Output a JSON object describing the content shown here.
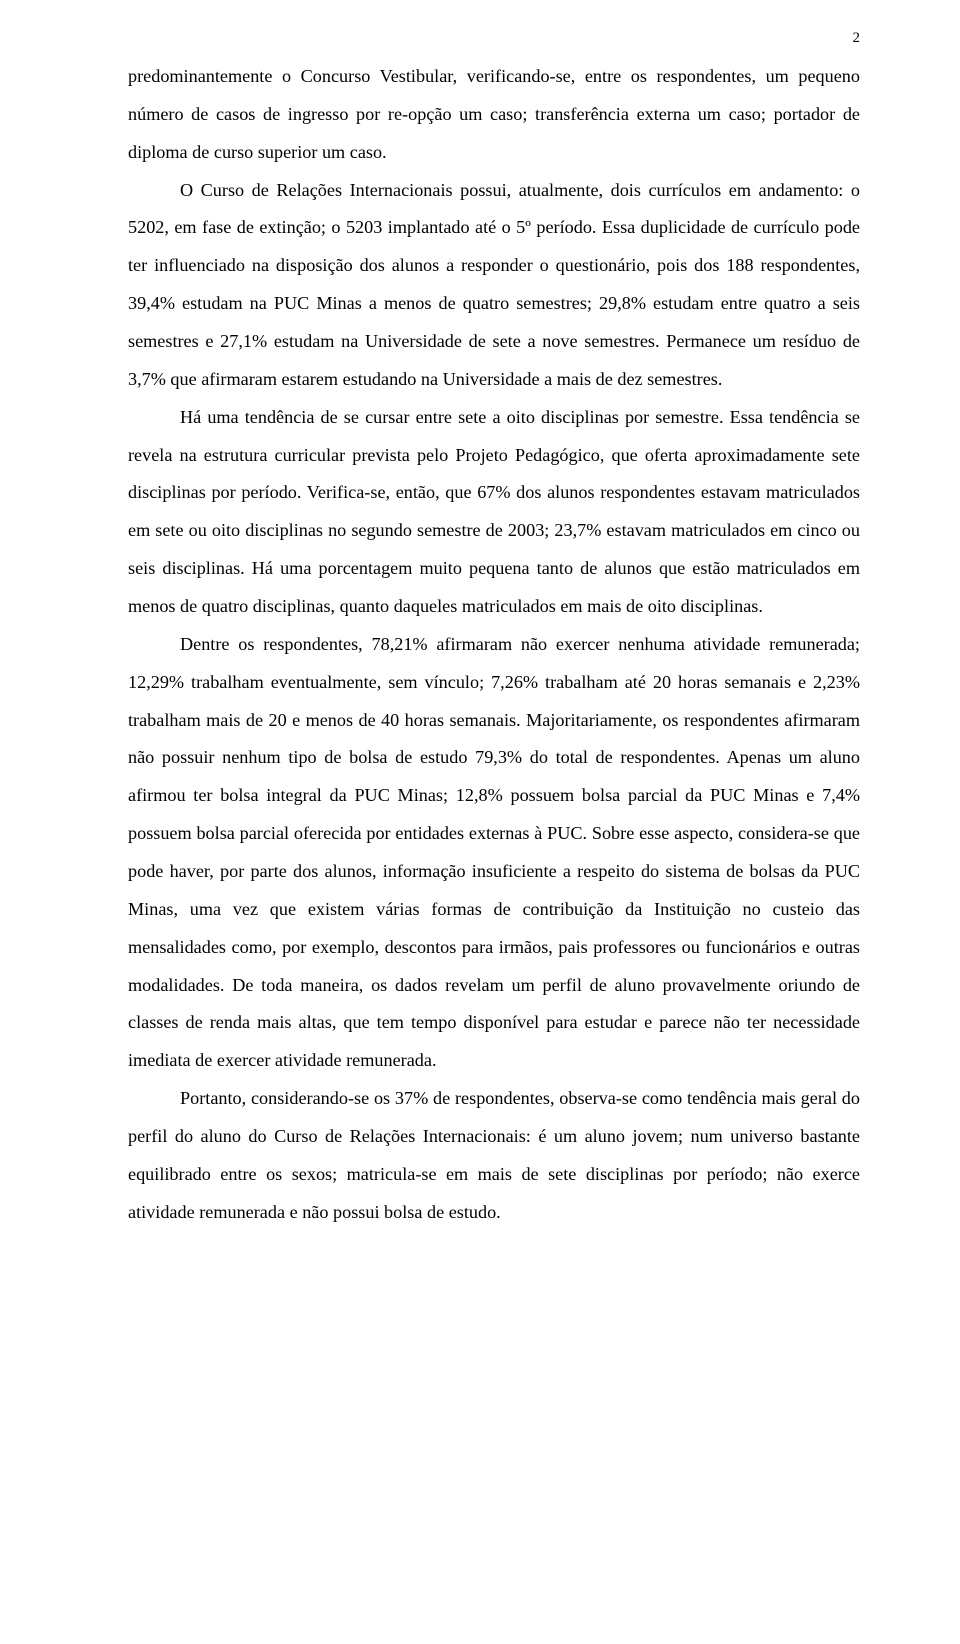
{
  "page_number": "2",
  "paragraphs": [
    "predominantemente o Concurso Vestibular, verificando-se, entre os respondentes, um pequeno número de casos de ingresso por re-opção um caso; transferência externa um caso; portador de diploma de curso superior um caso.",
    "O Curso de Relações Internacionais possui, atualmente, dois currículos em andamento: o 5202, em fase de extinção; o 5203 implantado até o 5º período. Essa duplicidade de currículo pode ter influenciado na disposição dos alunos a responder o questionário, pois dos 188 respondentes, 39,4% estudam na PUC Minas a menos de quatro semestres; 29,8% estudam entre quatro a seis semestres e 27,1% estudam na Universidade de sete a nove semestres. Permanece um resíduo de 3,7% que afirmaram estarem estudando na Universidade a mais de dez semestres.",
    "Há uma tendência de se cursar entre sete a oito disciplinas por semestre. Essa tendência se revela na estrutura curricular prevista pelo Projeto Pedagógico, que oferta aproximadamente sete disciplinas por período. Verifica-se, então, que 67% dos alunos respondentes estavam matriculados em sete ou oito disciplinas no segundo semestre de 2003; 23,7% estavam matriculados em cinco ou seis disciplinas. Há uma porcentagem muito pequena tanto de alunos que estão matriculados em menos de quatro disciplinas, quanto daqueles matriculados em mais de oito disciplinas.",
    "Dentre os respondentes, 78,21% afirmaram não exercer nenhuma atividade remunerada; 12,29% trabalham eventualmente, sem vínculo; 7,26% trabalham até 20 horas semanais e 2,23% trabalham mais de 20 e menos de 40 horas semanais. Majoritariamente, os respondentes afirmaram não possuir nenhum tipo de bolsa de estudo 79,3% do total de respondentes. Apenas um aluno afirmou ter bolsa integral da PUC Minas; 12,8% possuem bolsa parcial da PUC Minas e 7,4% possuem bolsa parcial oferecida por entidades externas à PUC. Sobre esse aspecto, considera-se que pode haver, por parte dos alunos, informação insuficiente a respeito do sistema de bolsas da PUC Minas, uma vez que existem várias formas de contribuição da Instituição no custeio das mensalidades como, por exemplo, descontos para irmãos, pais professores ou funcionários e outras modalidades. De toda maneira, os dados revelam um perfil de aluno provavelmente oriundo de classes de renda mais altas, que tem tempo disponível para estudar e parece não ter necessidade imediata de exercer atividade remunerada.",
    "Portanto, considerando-se os 37% de respondentes, observa-se como tendência mais geral do perfil do aluno do Curso de Relações Internacionais: é um aluno jovem; num universo bastante equilibrado entre os sexos; matricula-se em mais de sete disciplinas por período; não exerce atividade remunerada e não possui bolsa de estudo."
  ]
}
